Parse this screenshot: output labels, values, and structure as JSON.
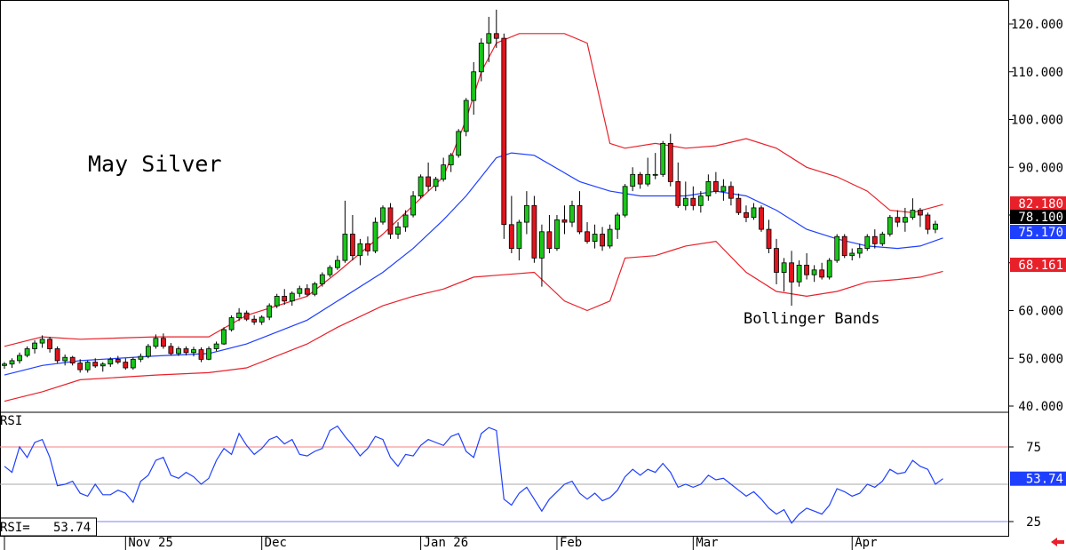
{
  "chart_data": {
    "type": "candlestick",
    "title": "May Silver",
    "annotation": "Bollinger Bands",
    "price_axis": {
      "min": 40,
      "max": 120,
      "ticks": [
        "120.000",
        "110.000",
        "100.000",
        "90.000",
        "80.000",
        "70.000",
        "60.000",
        "50.000",
        "40.000"
      ]
    },
    "x_labels": [
      "Nov 25",
      "Dec",
      "Jan 26",
      "Feb",
      "Mar",
      "Apr"
    ],
    "price_tags": [
      {
        "label": "82.180",
        "value": 82.18,
        "color": "#e8202a",
        "text_color": "#ffffff"
      },
      {
        "label": "78.100",
        "value": 78.1,
        "color": "#000000",
        "text_color": "#ffffff"
      },
      {
        "label": "75.170",
        "value": 75.17,
        "color": "#1f3fff",
        "text_color": "#ffffff"
      },
      {
        "label": "68.161",
        "value": 68.161,
        "color": "#e8202a",
        "text_color": "#ffffff"
      }
    ],
    "candles": [
      [
        48.5,
        49.2,
        47.8,
        48.8
      ],
      [
        48.8,
        50.0,
        48.0,
        49.5
      ],
      [
        49.5,
        51.2,
        48.9,
        50.6
      ],
      [
        50.6,
        52.5,
        50.2,
        52.0
      ],
      [
        52.0,
        53.8,
        51.0,
        53.2
      ],
      [
        53.2,
        54.8,
        52.2,
        54.0
      ],
      [
        54.0,
        54.5,
        51.2,
        52.0
      ],
      [
        52.0,
        52.5,
        49.0,
        49.5
      ],
      [
        49.5,
        50.8,
        48.5,
        50.2
      ],
      [
        50.2,
        50.5,
        48.5,
        49.0
      ],
      [
        49.0,
        49.8,
        47.0,
        47.6
      ],
      [
        47.6,
        49.5,
        47.0,
        49.2
      ],
      [
        49.2,
        50.0,
        48.0,
        48.4
      ],
      [
        48.4,
        49.2,
        47.2,
        48.8
      ],
      [
        48.8,
        50.2,
        48.2,
        49.8
      ],
      [
        49.8,
        50.5,
        48.8,
        49.2
      ],
      [
        49.2,
        50.0,
        47.6,
        48.0
      ],
      [
        48.0,
        50.2,
        47.6,
        49.8
      ],
      [
        49.8,
        51.0,
        49.2,
        50.4
      ],
      [
        50.4,
        53.0,
        50.0,
        52.5
      ],
      [
        52.5,
        55.0,
        52.0,
        54.2
      ],
      [
        54.2,
        55.2,
        52.0,
        52.5
      ],
      [
        52.5,
        53.2,
        50.6,
        51.0
      ],
      [
        51.0,
        52.5,
        50.5,
        52.0
      ],
      [
        52.0,
        52.5,
        50.6,
        51.2
      ],
      [
        51.2,
        52.4,
        50.4,
        51.8
      ],
      [
        51.8,
        52.3,
        49.2,
        49.8
      ],
      [
        49.8,
        52.5,
        49.6,
        52.0
      ],
      [
        52.0,
        53.5,
        51.5,
        53.0
      ],
      [
        53.0,
        56.5,
        52.8,
        56.0
      ],
      [
        56.0,
        59.0,
        55.6,
        58.5
      ],
      [
        58.5,
        60.5,
        57.8,
        59.5
      ],
      [
        59.5,
        60.0,
        57.8,
        58.2
      ],
      [
        58.2,
        59.0,
        57.0,
        57.6
      ],
      [
        57.6,
        59.0,
        57.0,
        58.6
      ],
      [
        58.6,
        61.5,
        58.0,
        61.0
      ],
      [
        61.0,
        63.5,
        60.5,
        63.0
      ],
      [
        63.0,
        64.5,
        61.2,
        62.0
      ],
      [
        62.0,
        64.0,
        61.0,
        63.6
      ],
      [
        63.6,
        65.2,
        62.8,
        64.6
      ],
      [
        64.6,
        65.5,
        63.0,
        63.4
      ],
      [
        63.4,
        66.0,
        63.0,
        65.6
      ],
      [
        65.6,
        68.0,
        65.0,
        67.5
      ],
      [
        67.5,
        69.5,
        67.0,
        69.0
      ],
      [
        69.0,
        71.5,
        68.5,
        70.5
      ],
      [
        70.5,
        83.0,
        70.0,
        76.0
      ],
      [
        76.0,
        80.0,
        70.5,
        71.5
      ],
      [
        71.5,
        75.0,
        69.5,
        74.0
      ],
      [
        74.0,
        75.5,
        71.5,
        72.5
      ],
      [
        72.5,
        79.5,
        72.0,
        78.5
      ],
      [
        78.5,
        82.0,
        78.0,
        81.5
      ],
      [
        81.5,
        82.5,
        75.0,
        76.0
      ],
      [
        76.0,
        78.5,
        75.0,
        77.5
      ],
      [
        77.5,
        81.0,
        76.5,
        80.0
      ],
      [
        80.0,
        85.0,
        79.5,
        84.0
      ],
      [
        84.0,
        88.5,
        83.5,
        88.0
      ],
      [
        88.0,
        91.0,
        85.0,
        86.0
      ],
      [
        86.0,
        88.0,
        85.0,
        87.5
      ],
      [
        87.5,
        92.0,
        87.0,
        90.5
      ],
      [
        90.5,
        93.0,
        89.0,
        92.5
      ],
      [
        92.5,
        98.0,
        92.0,
        97.5
      ],
      [
        97.5,
        104.5,
        96.5,
        104.0
      ],
      [
        104.0,
        112.0,
        101.0,
        110.0
      ],
      [
        110.0,
        117.0,
        108.0,
        116.0
      ],
      [
        116.0,
        121.5,
        112.0,
        118.0
      ],
      [
        118.0,
        123.0,
        115.0,
        117.0
      ],
      [
        117.0,
        118.0,
        75.0,
        78.0
      ],
      [
        78.0,
        84.0,
        72.0,
        73.0
      ],
      [
        73.0,
        79.0,
        70.5,
        78.5
      ],
      [
        78.5,
        85.0,
        76.0,
        82.0
      ],
      [
        82.0,
        84.0,
        70.0,
        71.0
      ],
      [
        71.0,
        78.0,
        65.0,
        76.5
      ],
      [
        76.5,
        80.0,
        72.0,
        73.0
      ],
      [
        73.0,
        80.0,
        72.5,
        79.0
      ],
      [
        79.0,
        82.0,
        76.0,
        78.5
      ],
      [
        78.5,
        83.0,
        77.5,
        82.0
      ],
      [
        82.0,
        85.0,
        76.0,
        76.5
      ],
      [
        76.5,
        78.5,
        74.0,
        74.5
      ],
      [
        74.5,
        78.0,
        73.0,
        76.0
      ],
      [
        76.0,
        77.5,
        72.5,
        73.5
      ],
      [
        73.5,
        78.0,
        73.0,
        77.0
      ],
      [
        77.0,
        80.5,
        75.0,
        80.0
      ],
      [
        80.0,
        86.5,
        79.5,
        86.0
      ],
      [
        86.0,
        90.0,
        85.0,
        88.5
      ],
      [
        88.5,
        89.0,
        85.5,
        86.5
      ],
      [
        86.5,
        92.0,
        86.0,
        88.5
      ],
      [
        88.5,
        93.0,
        87.5,
        88.5
      ],
      [
        88.5,
        95.5,
        88.0,
        95.0
      ],
      [
        95.0,
        97.0,
        86.0,
        87.0
      ],
      [
        87.0,
        91.0,
        81.5,
        82.0
      ],
      [
        82.0,
        87.0,
        81.0,
        83.5
      ],
      [
        83.5,
        86.0,
        81.0,
        82.0
      ],
      [
        82.0,
        85.0,
        80.5,
        84.0
      ],
      [
        84.0,
        88.5,
        83.0,
        87.0
      ],
      [
        87.0,
        89.0,
        84.5,
        85.0
      ],
      [
        85.0,
        87.5,
        83.0,
        86.0
      ],
      [
        86.0,
        87.0,
        82.0,
        83.5
      ],
      [
        83.5,
        84.5,
        80.0,
        80.5
      ],
      [
        80.5,
        82.0,
        78.5,
        79.5
      ],
      [
        79.5,
        82.5,
        79.0,
        81.5
      ],
      [
        81.5,
        82.0,
        76.5,
        77.0
      ],
      [
        77.0,
        79.0,
        72.0,
        73.0
      ],
      [
        73.0,
        75.0,
        65.5,
        68.0
      ],
      [
        68.0,
        71.0,
        64.0,
        70.0
      ],
      [
        70.0,
        72.5,
        61.0,
        66.0
      ],
      [
        66.0,
        70.5,
        65.0,
        69.5
      ],
      [
        69.5,
        72.0,
        66.5,
        67.5
      ],
      [
        67.5,
        69.5,
        66.0,
        68.5
      ],
      [
        68.5,
        70.0,
        66.5,
        67.0
      ],
      [
        67.0,
        71.0,
        66.5,
        70.5
      ],
      [
        70.5,
        76.0,
        70.0,
        75.5
      ],
      [
        75.5,
        76.0,
        71.0,
        71.5
      ],
      [
        71.5,
        73.0,
        70.5,
        72.0
      ],
      [
        72.0,
        74.0,
        71.0,
        73.0
      ],
      [
        73.0,
        76.0,
        72.5,
        75.5
      ],
      [
        75.5,
        77.0,
        73.0,
        74.0
      ],
      [
        74.0,
        76.5,
        73.5,
        76.0
      ],
      [
        76.0,
        80.0,
        75.5,
        79.5
      ],
      [
        79.5,
        81.0,
        77.5,
        78.5
      ],
      [
        78.5,
        81.5,
        76.5,
        79.5
      ],
      [
        79.5,
        83.5,
        79.0,
        81.0
      ],
      [
        81.0,
        81.5,
        77.5,
        80.0
      ],
      [
        80.0,
        80.5,
        76.0,
        77.0
      ],
      [
        77.0,
        78.8,
        76.2,
        78.1
      ]
    ],
    "bollinger": {
      "upper": [
        [
          0,
          52.5
        ],
        [
          5,
          54.5
        ],
        [
          10,
          54.0
        ],
        [
          20,
          54.5
        ],
        [
          27,
          54.5
        ],
        [
          32,
          59.0
        ],
        [
          40,
          63.0
        ],
        [
          44,
          68.0
        ],
        [
          50,
          76.0
        ],
        [
          54,
          82.0
        ],
        [
          58,
          88.0
        ],
        [
          61,
          100.0
        ],
        [
          63,
          110.0
        ],
        [
          65,
          116.0
        ],
        [
          68,
          118.0
        ],
        [
          74,
          118.0
        ],
        [
          77,
          116.0
        ],
        [
          80,
          95.0
        ],
        [
          82,
          94.0
        ],
        [
          86,
          95.0
        ],
        [
          90,
          94.0
        ],
        [
          94,
          94.5
        ],
        [
          98,
          96.0
        ],
        [
          102,
          94.0
        ],
        [
          106,
          90.0
        ],
        [
          110,
          88.0
        ],
        [
          114,
          85.0
        ],
        [
          117,
          81.0
        ],
        [
          120,
          80.5
        ],
        [
          124,
          82.2
        ]
      ],
      "middle": [
        [
          0,
          46.5
        ],
        [
          5,
          48.5
        ],
        [
          10,
          49.5
        ],
        [
          20,
          50.5
        ],
        [
          27,
          51.0
        ],
        [
          32,
          53.0
        ],
        [
          40,
          58.0
        ],
        [
          44,
          62.0
        ],
        [
          50,
          68.0
        ],
        [
          54,
          73.0
        ],
        [
          58,
          79.0
        ],
        [
          61,
          84.0
        ],
        [
          63,
          88.0
        ],
        [
          65,
          92.0
        ],
        [
          67,
          93.0
        ],
        [
          70,
          92.5
        ],
        [
          76,
          87.0
        ],
        [
          80,
          85.0
        ],
        [
          84,
          84.0
        ],
        [
          90,
          84.0
        ],
        [
          94,
          85.0
        ],
        [
          98,
          84.0
        ],
        [
          102,
          81.0
        ],
        [
          106,
          77.0
        ],
        [
          110,
          75.0
        ],
        [
          114,
          73.5
        ],
        [
          118,
          73.0
        ],
        [
          121,
          73.5
        ],
        [
          124,
          75.2
        ]
      ],
      "lower": [
        [
          0,
          41.0
        ],
        [
          5,
          43.0
        ],
        [
          10,
          45.5
        ],
        [
          20,
          46.5
        ],
        [
          27,
          47.0
        ],
        [
          32,
          48.0
        ],
        [
          40,
          53.0
        ],
        [
          44,
          56.5
        ],
        [
          50,
          61.0
        ],
        [
          54,
          63.0
        ],
        [
          58,
          64.5
        ],
        [
          62,
          67.0
        ],
        [
          66,
          67.5
        ],
        [
          70,
          68.0
        ],
        [
          74,
          62.0
        ],
        [
          77,
          60.0
        ],
        [
          80,
          62.0
        ],
        [
          82,
          71.0
        ],
        [
          86,
          71.5
        ],
        [
          90,
          73.5
        ],
        [
          94,
          74.5
        ],
        [
          98,
          68.0
        ],
        [
          102,
          64.0
        ],
        [
          106,
          63.0
        ],
        [
          110,
          64.0
        ],
        [
          114,
          66.0
        ],
        [
          118,
          66.5
        ],
        [
          121,
          67.0
        ],
        [
          124,
          68.2
        ]
      ]
    },
    "rsi": {
      "label": "RSI",
      "readout_label": "RSI=",
      "current": "53.74",
      "ticks": [
        "75",
        "25"
      ],
      "overbought": 75,
      "oversold": 25,
      "midline": 50,
      "values": [
        62.0,
        58.0,
        75.0,
        68.0,
        78.0,
        80.0,
        68.0,
        49.0,
        50.0,
        52.0,
        44.0,
        42.0,
        50.0,
        43.0,
        43.0,
        46.0,
        44.0,
        38.0,
        52.0,
        56.0,
        66.0,
        68.0,
        56.0,
        54.0,
        58.0,
        55.0,
        50.0,
        54.0,
        66.0,
        74.0,
        70.0,
        84.0,
        76.0,
        70.0,
        74.0,
        80.0,
        82.0,
        77.0,
        80.0,
        70.0,
        69.0,
        72.0,
        74.0,
        86.0,
        89.0,
        82.0,
        76.0,
        69.0,
        74.0,
        82.0,
        80.0,
        68.0,
        62.0,
        70.0,
        69.0,
        76.0,
        80.0,
        78.0,
        76.0,
        82.0,
        84.0,
        72.0,
        68.0,
        84.0,
        88.0,
        86.0,
        40.0,
        36.0,
        44.0,
        48.0,
        40.0,
        32.0,
        40.0,
        45.0,
        50.0,
        52.0,
        44.0,
        40.0,
        44.0,
        39.0,
        41.0,
        46.0,
        55.0,
        60.0,
        56.0,
        60.0,
        58.0,
        64.0,
        58.0,
        48.0,
        50.0,
        48.0,
        50.0,
        56.0,
        53.0,
        54.0,
        50.0,
        46.0,
        42.0,
        45.0,
        40.0,
        34.0,
        30.0,
        33.0,
        24.0,
        30.0,
        34.0,
        32.0,
        30.0,
        36.0,
        47.0,
        45.0,
        42.0,
        44.0,
        50.0,
        48.0,
        52.0,
        60.0,
        57.0,
        58.0,
        66.0,
        62.0,
        60.0,
        50.0,
        53.74
      ]
    }
  }
}
